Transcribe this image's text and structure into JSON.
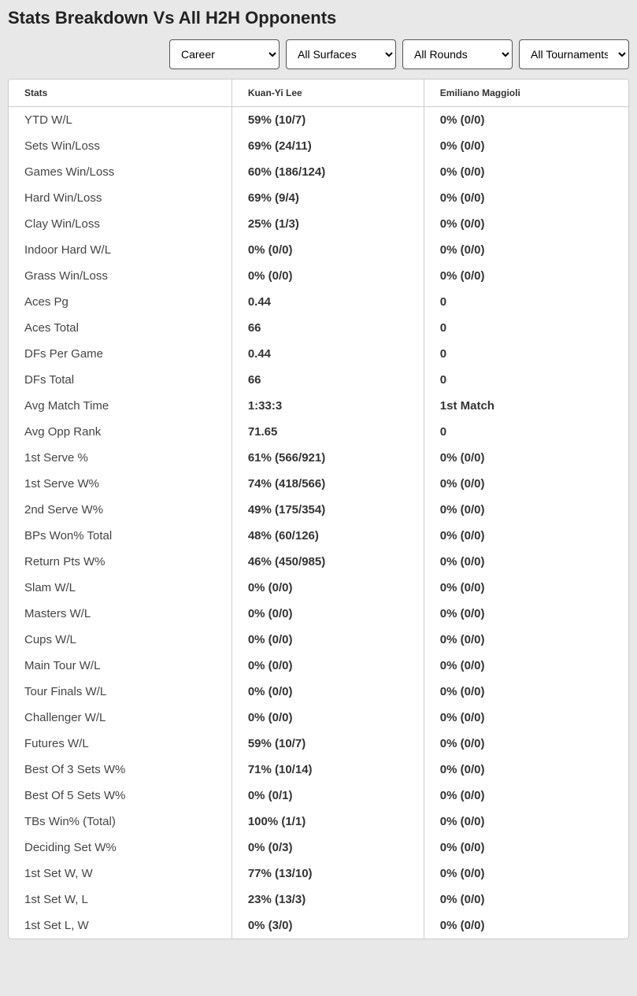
{
  "title": "Stats Breakdown Vs All H2H Opponents",
  "filters": {
    "period": {
      "selected": "Career"
    },
    "surface": {
      "selected": "All Surfaces"
    },
    "round": {
      "selected": "All Rounds"
    },
    "tour": {
      "selected": "All Tournaments"
    }
  },
  "columns": {
    "stats": "Stats",
    "player1": "Kuan-Yi Lee",
    "player2": "Emiliano Maggioli"
  },
  "rows": [
    {
      "stat": "YTD W/L",
      "p1": "59% (10/7)",
      "p2": "0% (0/0)"
    },
    {
      "stat": "Sets Win/Loss",
      "p1": "69% (24/11)",
      "p2": "0% (0/0)"
    },
    {
      "stat": "Games Win/Loss",
      "p1": "60% (186/124)",
      "p2": "0% (0/0)"
    },
    {
      "stat": "Hard Win/Loss",
      "p1": "69% (9/4)",
      "p2": "0% (0/0)"
    },
    {
      "stat": "Clay Win/Loss",
      "p1": "25% (1/3)",
      "p2": "0% (0/0)"
    },
    {
      "stat": "Indoor Hard W/L",
      "p1": "0% (0/0)",
      "p2": "0% (0/0)"
    },
    {
      "stat": "Grass Win/Loss",
      "p1": "0% (0/0)",
      "p2": "0% (0/0)"
    },
    {
      "stat": "Aces Pg",
      "p1": "0.44",
      "p2": "0"
    },
    {
      "stat": "Aces Total",
      "p1": "66",
      "p2": "0"
    },
    {
      "stat": "DFs Per Game",
      "p1": "0.44",
      "p2": "0"
    },
    {
      "stat": "DFs Total",
      "p1": "66",
      "p2": "0"
    },
    {
      "stat": "Avg Match Time",
      "p1": "1:33:3",
      "p2": "1st Match"
    },
    {
      "stat": "Avg Opp Rank",
      "p1": "71.65",
      "p2": "0"
    },
    {
      "stat": "1st Serve %",
      "p1": "61% (566/921)",
      "p2": "0% (0/0)"
    },
    {
      "stat": "1st Serve W%",
      "p1": "74% (418/566)",
      "p2": "0% (0/0)"
    },
    {
      "stat": "2nd Serve W%",
      "p1": "49% (175/354)",
      "p2": "0% (0/0)"
    },
    {
      "stat": "BPs Won% Total",
      "p1": "48% (60/126)",
      "p2": "0% (0/0)"
    },
    {
      "stat": "Return Pts W%",
      "p1": "46% (450/985)",
      "p2": "0% (0/0)"
    },
    {
      "stat": "Slam W/L",
      "p1": "0% (0/0)",
      "p2": "0% (0/0)"
    },
    {
      "stat": "Masters W/L",
      "p1": "0% (0/0)",
      "p2": "0% (0/0)"
    },
    {
      "stat": "Cups W/L",
      "p1": "0% (0/0)",
      "p2": "0% (0/0)"
    },
    {
      "stat": "Main Tour W/L",
      "p1": "0% (0/0)",
      "p2": "0% (0/0)"
    },
    {
      "stat": "Tour Finals W/L",
      "p1": "0% (0/0)",
      "p2": "0% (0/0)"
    },
    {
      "stat": "Challenger W/L",
      "p1": "0% (0/0)",
      "p2": "0% (0/0)"
    },
    {
      "stat": "Futures W/L",
      "p1": "59% (10/7)",
      "p2": "0% (0/0)"
    },
    {
      "stat": "Best Of 3 Sets W%",
      "p1": "71% (10/14)",
      "p2": "0% (0/0)"
    },
    {
      "stat": "Best Of 5 Sets W%",
      "p1": "0% (0/1)",
      "p2": "0% (0/0)"
    },
    {
      "stat": "TBs Win% (Total)",
      "p1": "100% (1/1)",
      "p2": "0% (0/0)"
    },
    {
      "stat": "Deciding Set W%",
      "p1": "0% (0/3)",
      "p2": "0% (0/0)"
    },
    {
      "stat": "1st Set W, W",
      "p1": "77% (13/10)",
      "p2": "0% (0/0)"
    },
    {
      "stat": "1st Set W, L",
      "p1": "23% (13/3)",
      "p2": "0% (0/0)"
    },
    {
      "stat": "1st Set L, W",
      "p1": "0% (3/0)",
      "p2": "0% (0/0)"
    }
  ]
}
